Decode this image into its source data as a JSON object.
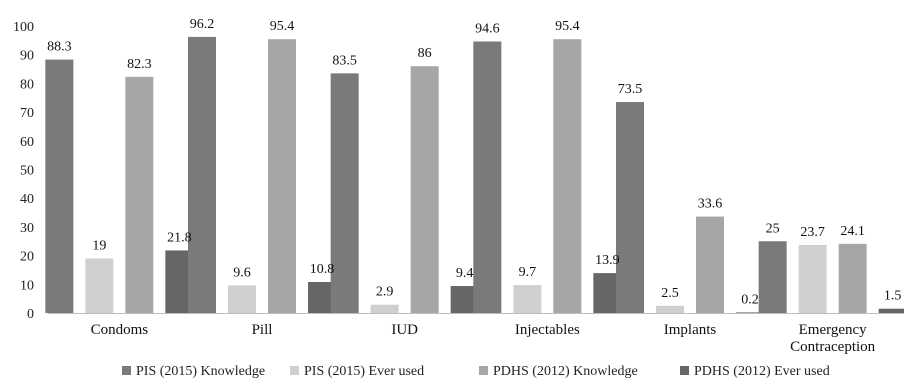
{
  "chart_data": {
    "type": "bar",
    "categories": [
      "Condoms",
      "Pill",
      "IUD",
      "Injectables",
      "Implants",
      "Emergency\nContraception"
    ],
    "series": [
      {
        "name": "PIS (2015) Knowledge",
        "color": "#7a7a7a",
        "values": [
          88.3,
          96.2,
          83.5,
          94.6,
          73.5,
          25
        ]
      },
      {
        "name": "PIS (2015) Ever used",
        "color": "#cfcfcf",
        "values": [
          19,
          9.6,
          2.9,
          9.7,
          2.5,
          23.7
        ]
      },
      {
        "name": "PDHS (2012) Knowledge",
        "color": "#a6a6a6",
        "values": [
          82.3,
          95.4,
          86,
          95.4,
          33.6,
          24.1
        ]
      },
      {
        "name": "PDHS (2012) Ever used",
        "color": "#666666",
        "values": [
          21.8,
          10.8,
          9.4,
          13.9,
          0.2,
          1.5
        ]
      }
    ],
    "ylim": [
      0,
      100
    ],
    "yticks": [
      0,
      10,
      20,
      30,
      40,
      50,
      60,
      70,
      80,
      90,
      100
    ],
    "legend_position": "bottom",
    "grid": false
  }
}
